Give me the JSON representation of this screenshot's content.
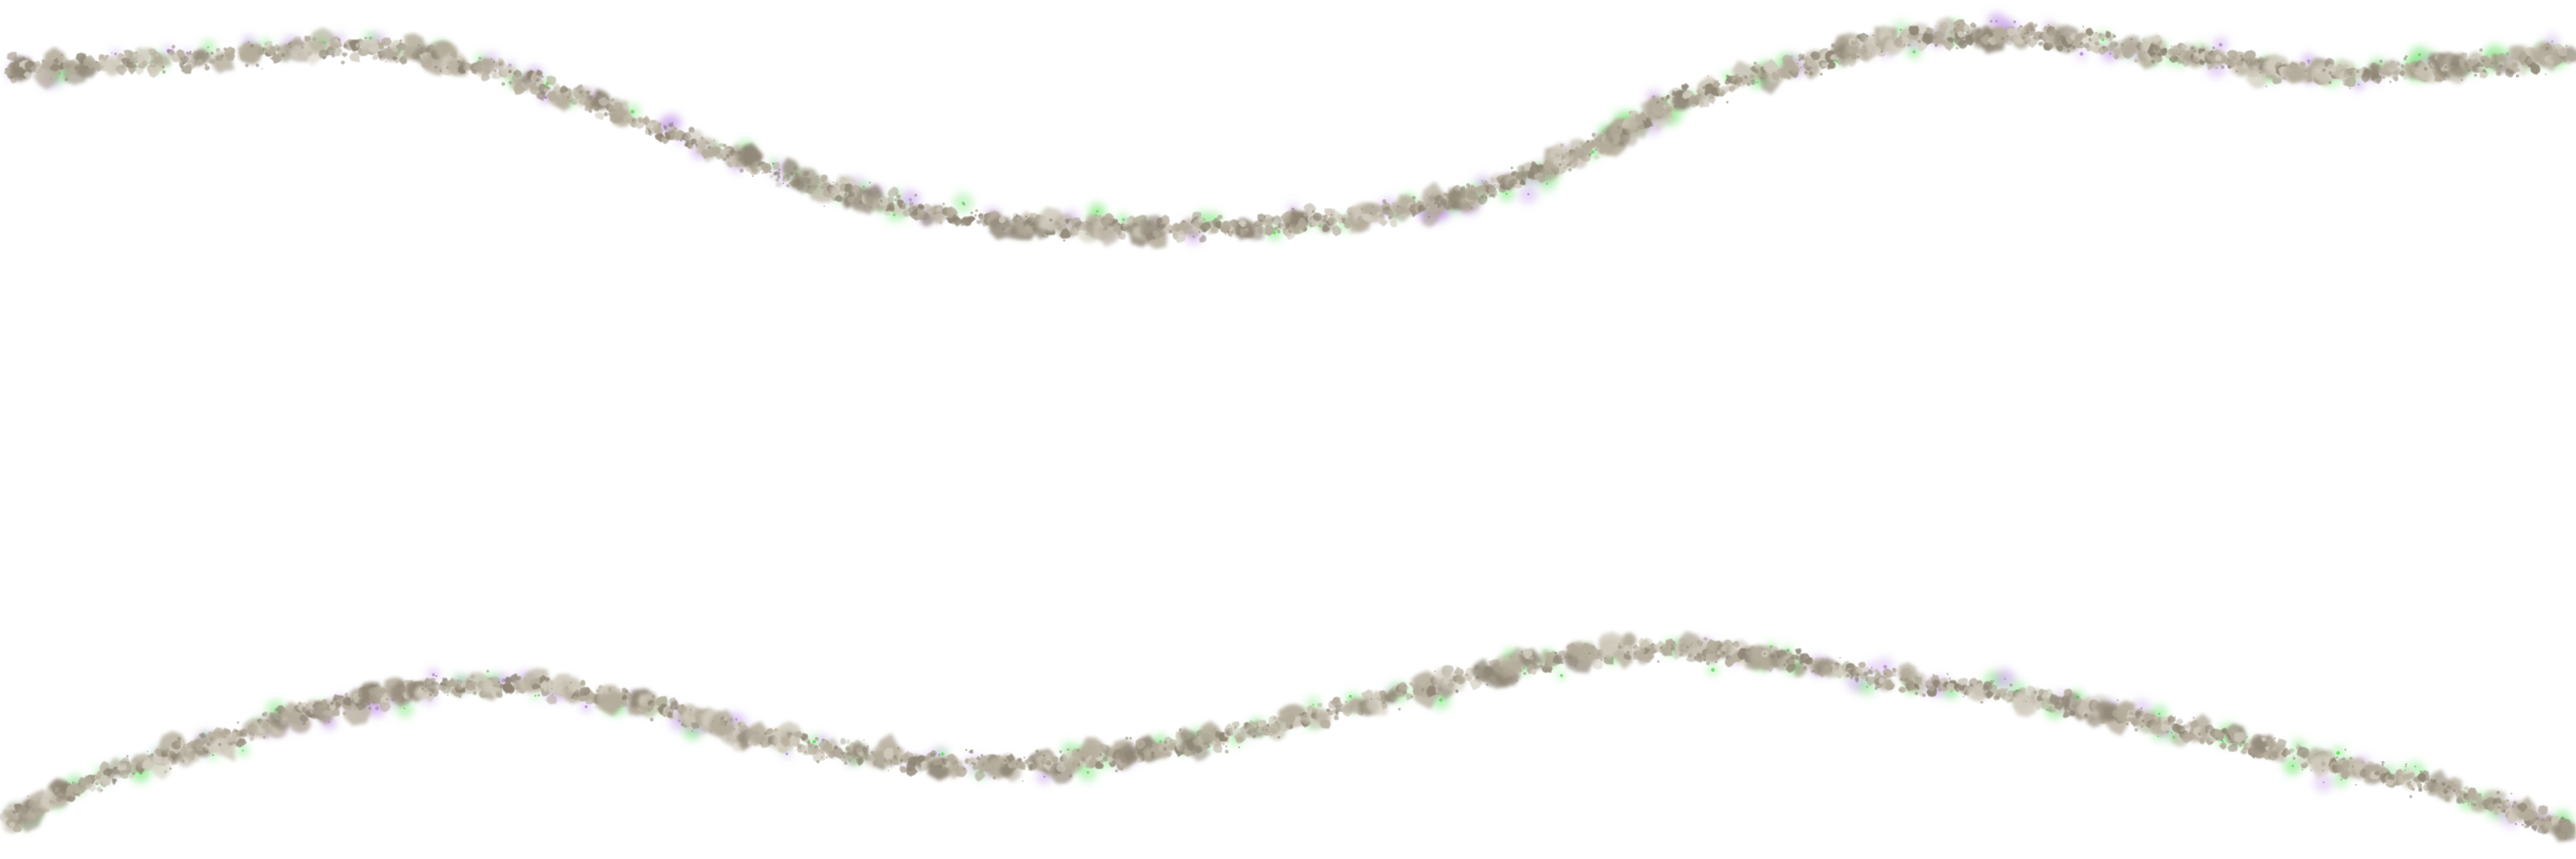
{
  "background": "#ffffff",
  "decoration": {
    "kind": "sparkle-garland",
    "count": 2,
    "colors": {
      "stone": "#b5ad9c",
      "stone_dark": "#8f8676",
      "stone_light": "#d2ccbf",
      "glow_green": "#5ee05a",
      "glow_violet": "#b88ae0"
    },
    "icon_names": [
      "pebble-icon",
      "sparkle-icon"
    ]
  }
}
